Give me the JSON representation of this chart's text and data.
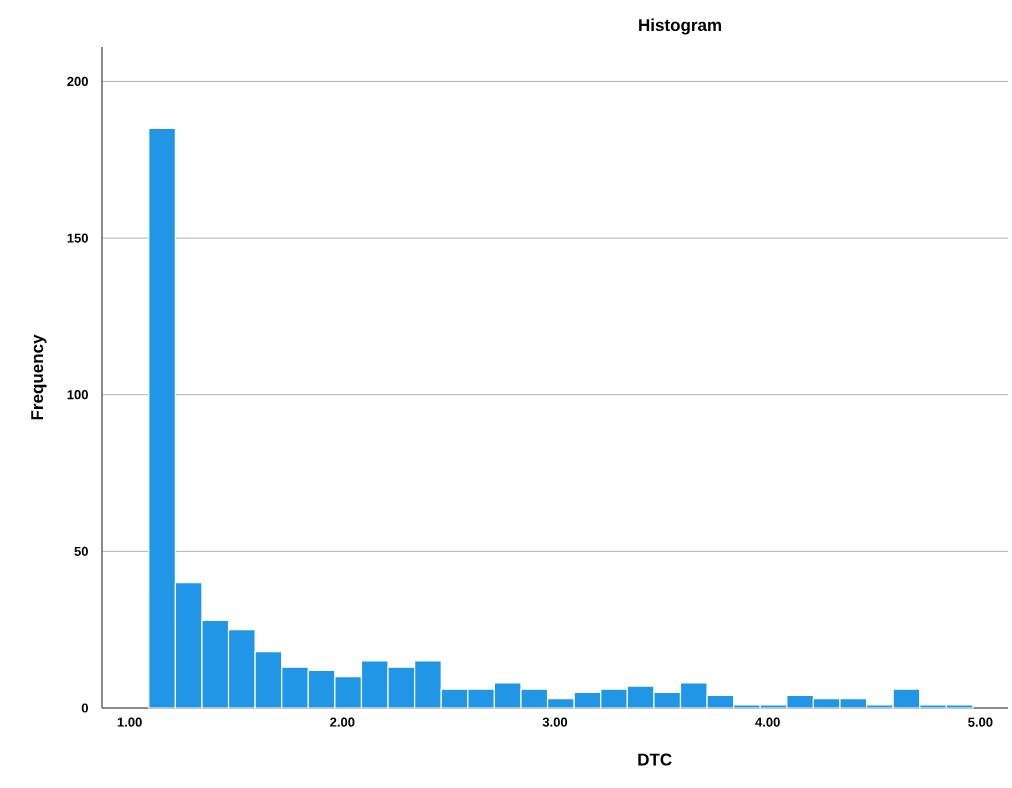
{
  "chart_data": {
    "type": "histogram",
    "title": "Histogram",
    "xlabel": "DTC",
    "ylabel": "Frequency",
    "color": "#2196e6",
    "bins": [
      1.09,
      1.215,
      1.34,
      1.465,
      1.59,
      1.715,
      1.84,
      1.965,
      2.09,
      2.215,
      2.34,
      2.465,
      2.59,
      2.715,
      2.84,
      2.965,
      3.09,
      3.215,
      3.34,
      3.465,
      3.59,
      3.715,
      3.84,
      3.965,
      4.09,
      4.215,
      4.34,
      4.465,
      4.59,
      4.715,
      4.84,
      4.965
    ],
    "values": [
      185,
      40,
      28,
      25,
      18,
      13,
      12,
      10,
      15,
      13,
      15,
      6,
      6,
      8,
      6,
      3,
      5,
      6,
      7,
      5,
      8,
      4,
      1,
      1,
      4,
      3,
      3,
      1,
      6,
      1,
      1
    ],
    "xlim": [
      0.87,
      5.13
    ],
    "ylim": [
      0,
      211
    ],
    "xticks": [
      {
        "value": 1,
        "label": "1.00"
      },
      {
        "value": 2,
        "label": "2.00"
      },
      {
        "value": 3,
        "label": "3.00"
      },
      {
        "value": 4,
        "label": "4.00"
      },
      {
        "value": 5,
        "label": "5.00"
      }
    ],
    "yticks": [
      0,
      50,
      100,
      150,
      200
    ],
    "grid": "y"
  }
}
